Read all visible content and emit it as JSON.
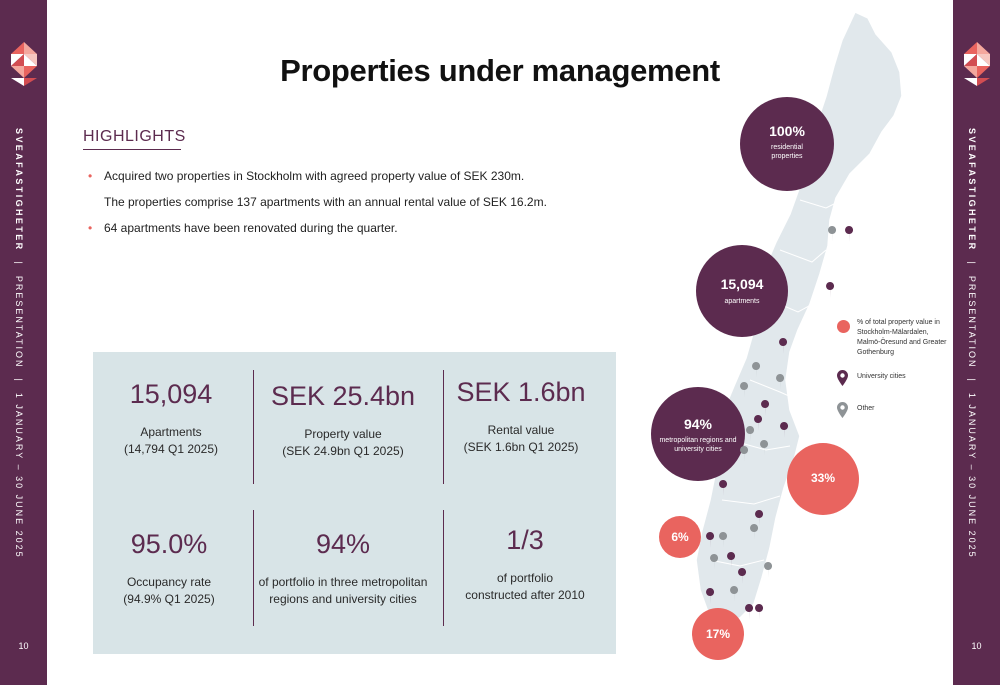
{
  "sidebar": {
    "brand": "SVEAFASTIGHETER",
    "separator": "|",
    "section": "PRESENTATION",
    "period": "1 JANUARY – 30 JUNE 2025",
    "page_number": "10"
  },
  "title": "Properties under management",
  "highlights": {
    "heading": "HIGHLIGHTS",
    "bullets": [
      {
        "marker": "•",
        "text": "Acquired two properties in Stockholm with agreed property value of SEK 230m."
      },
      {
        "marker": "",
        "text": "The properties comprise 137 apartments with an annual rental value of SEK 16.2m."
      },
      {
        "marker": "•",
        "text": "64 apartments have been renovated during the quarter."
      }
    ]
  },
  "kpis": [
    {
      "value": "15,094",
      "line1": "Apartments",
      "line2": "(14,794 Q1 2025)"
    },
    {
      "value": "SEK 25.4bn",
      "line1": "Property value",
      "line2": "(SEK 24.9bn Q1 2025)"
    },
    {
      "value": "SEK 1.6bn",
      "line1": "Rental value",
      "line2": "(SEK 1.6bn Q1 2025)"
    },
    {
      "value": "95.0%",
      "line1": "Occupancy rate",
      "line2": "(94.9% Q1 2025)"
    },
    {
      "value": "94%",
      "line1": "of portfolio in three metropolitan",
      "line2": "regions and university cities"
    },
    {
      "value": "1/3",
      "line1": "of portfolio",
      "line2": "constructed after 2010"
    }
  ],
  "map": {
    "bubbles": [
      {
        "value": "100%",
        "label": "residential properties"
      },
      {
        "value": "15,094",
        "label": "apartments"
      },
      {
        "value": "94%",
        "label": "metropolitan regions and university cities"
      },
      {
        "value": "33%",
        "label": ""
      },
      {
        "value": "6%",
        "label": ""
      },
      {
        "value": "17%",
        "label": ""
      }
    ],
    "legend": [
      {
        "icon": "red-circle",
        "text": "% of total property value in Stockholm-Mälardalen, Malmö-Öresund and Greater Gothenburg"
      },
      {
        "icon": "purple-pin-icon",
        "text": "University cities"
      },
      {
        "icon": "gray-pin-icon",
        "text": "Other"
      }
    ]
  },
  "colors": {
    "brand_purple": "#5c2b4f",
    "accent_red": "#e9645f",
    "panel_bg": "#d8e4e7",
    "map_fill": "#e1e8ec",
    "pin_gray": "#8e9396"
  }
}
